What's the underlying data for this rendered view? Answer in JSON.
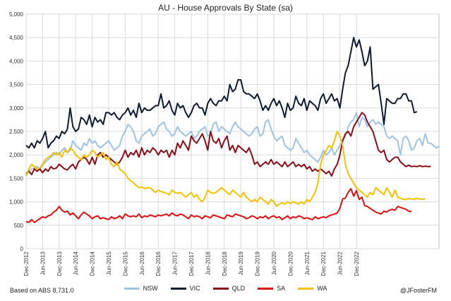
{
  "chart_data": {
    "type": "line",
    "title": "AU - House Approvals By State (sa)",
    "xlabel": "",
    "ylabel": "",
    "ylim": [
      0,
      5000
    ],
    "yticks": [
      0,
      500,
      1000,
      1500,
      2000,
      2500,
      3000,
      3500,
      4000,
      4500,
      5000
    ],
    "ytick_labels": [
      "0",
      "500",
      "1,000",
      "1,500",
      "2,000",
      "2,500",
      "3,000",
      "3,500",
      "4,000",
      "4,500",
      "5,000"
    ],
    "grid": true,
    "legend_position": "bottom",
    "x_start": "Dec-2012",
    "x_tick_labels": [
      "Dec-2012",
      "Jun-2013",
      "Dec-2013",
      "Jun-2014",
      "Dec-2014",
      "Jun-2015",
      "Dec-2015",
      "Jun-2016",
      "Dec-2016",
      "Jun-2017",
      "Dec-2017",
      "Jun-2018",
      "Dec-2018",
      "Jun-2019",
      "Dec-2019",
      "Jun-2020",
      "Dec-2020",
      "Jun-2021",
      "Dec-2021",
      "Jun-2022",
      "Dec-2022"
    ],
    "x_tick_step_months": 6,
    "series": [
      {
        "name": "NSW",
        "color": "#9dc3e6",
        "values": [
          1600,
          1650,
          1700,
          1720,
          1750,
          1700,
          1780,
          1850,
          1900,
          1950,
          2000,
          2050,
          2000,
          2100,
          2150,
          2050,
          2100,
          2300,
          2200,
          2150,
          2100,
          2250,
          2200,
          2350,
          2250,
          2300,
          2200,
          2150,
          2200,
          2250,
          2300,
          2200,
          2100,
          2150,
          2200,
          2400,
          2500,
          2650,
          2600,
          2500,
          2300,
          2250,
          2400,
          2450,
          2500,
          2550,
          2400,
          2450,
          2600,
          2650,
          2700,
          2550,
          2500,
          2400,
          2450,
          2600,
          2500,
          2450,
          2400,
          2450,
          2500,
          2350,
          2400,
          2500,
          2550,
          2600,
          2400,
          2450,
          2650,
          2700,
          2500,
          2600,
          2550,
          2500,
          2450,
          2600,
          2700,
          2600,
          2550,
          2500,
          2450,
          2400,
          2450,
          2550,
          2600,
          2400,
          2450,
          2700,
          2750,
          2550,
          2400,
          2300,
          2350,
          2400,
          2200,
          2150,
          2100,
          2150,
          2350,
          2250,
          2150,
          2050,
          2100,
          2000,
          1950,
          1900,
          1850,
          1950,
          2100,
          2000,
          2050,
          2150,
          2000,
          2100,
          2200,
          2300,
          2400,
          2600,
          2700,
          2750,
          2900,
          2600,
          2800,
          2750,
          2600,
          2700,
          2750,
          2650,
          2700,
          2650,
          2600,
          2400,
          2350,
          2400,
          2350,
          2300,
          2000,
          2350,
          2400,
          2300,
          2100,
          2150,
          2300,
          2350,
          2200,
          2450,
          2250,
          2250,
          2200,
          2150,
          2180
        ]
      },
      {
        "name": "VIC",
        "color": "#0d1b2e",
        "values": [
          2200,
          2150,
          2250,
          2150,
          2300,
          2250,
          2350,
          2500,
          2150,
          2250,
          2300,
          2400,
          2350,
          2500,
          2450,
          2550,
          3000,
          2600,
          2500,
          2550,
          2800,
          2750,
          2650,
          2850,
          2600,
          2800,
          2700,
          2750,
          2650,
          2900,
          2900,
          2850,
          2900,
          2800,
          2750,
          2850,
          2900,
          3000,
          2850,
          2950,
          2800,
          3100,
          2900,
          3000,
          2950,
          2950,
          3000,
          3050,
          3050,
          3300,
          3000,
          3050,
          3150,
          2950,
          2850,
          3100,
          3000,
          3050,
          2900,
          2800,
          2900,
          3050,
          3100,
          3000,
          3000,
          2850,
          3100,
          3200,
          3100,
          3050,
          3150,
          3150,
          3250,
          3150,
          3500,
          3350,
          3400,
          3600,
          3600,
          3350,
          3300,
          3300,
          3250,
          3200,
          3300,
          3150,
          2950,
          3050,
          2950,
          3100,
          3200,
          3050,
          3150,
          3000,
          2800,
          3100,
          2950,
          3000,
          3250,
          3100,
          3050,
          3200,
          2950,
          3150,
          3100,
          3050,
          2950,
          3200,
          3300,
          3100,
          3200,
          3300,
          3150,
          3200,
          3000,
          3400,
          3750,
          3900,
          4200,
          4500,
          4300,
          4450,
          4200,
          3900,
          4000,
          4300,
          3400,
          3450,
          3500,
          3100,
          2650,
          3200,
          3150,
          3100,
          3100,
          3200,
          3200,
          3300,
          3300,
          3150,
          3150,
          2900,
          2920
        ]
      },
      {
        "name": "QLD",
        "color": "#8b0d16",
        "values": [
          1600,
          1650,
          1580,
          1700,
          1650,
          1700,
          1620,
          1700,
          1650,
          1750,
          1700,
          1720,
          1800,
          1750,
          1700,
          1680,
          1750,
          1800,
          1700,
          1850,
          1900,
          1950,
          1900,
          1800,
          1950,
          1800,
          2000,
          2050,
          1950,
          2000,
          1950,
          1900,
          1850,
          1800,
          1850,
          1950,
          2100,
          1950,
          2050,
          2000,
          2100,
          1950,
          2150,
          2000,
          2100,
          2050,
          2150,
          2100,
          2000,
          2100,
          2050,
          2100,
          1950,
          2100,
          2000,
          2250,
          2150,
          2300,
          2200,
          2100,
          2400,
          2300,
          2250,
          2350,
          2450,
          2300,
          2100,
          2500,
          2300,
          2250,
          2350,
          2150,
          2300,
          2400,
          2100,
          2200,
          2050,
          2200,
          2150,
          2100,
          2050,
          2150,
          2000,
          1800,
          1850,
          1750,
          1800,
          1850,
          1800,
          1900,
          1800,
          1850,
          1800,
          1750,
          1850,
          1750,
          1800,
          1850,
          1750,
          1800,
          1750,
          1800,
          1700,
          1750,
          1650,
          1700,
          1650,
          1700,
          1650,
          1600,
          1650,
          1550,
          1700,
          1800,
          2000,
          2300,
          2450,
          2500,
          2400,
          2600,
          2700,
          2800,
          2900,
          2850,
          2700,
          2600,
          2500,
          2300,
          2100,
          2050,
          2100,
          1900,
          1850,
          1900,
          1950,
          1950,
          1850,
          1800,
          1750,
          1780,
          1750,
          1760,
          1750,
          1770,
          1750,
          1760,
          1750,
          1755
        ]
      },
      {
        "name": "SA",
        "color": "#e00f0f",
        "values": [
          580,
          560,
          620,
          560,
          600,
          640,
          680,
          660,
          700,
          720,
          780,
          820,
          900,
          820,
          780,
          800,
          720,
          760,
          700,
          640,
          720,
          780,
          740,
          700,
          640,
          680,
          700,
          640,
          660,
          640,
          620,
          680,
          640,
          660,
          700,
          640,
          740,
          700,
          680,
          700,
          680,
          740,
          660,
          700,
          680,
          720,
          700,
          680,
          720,
          700,
          720,
          740,
          700,
          760,
          720,
          700,
          740,
          720,
          680,
          640,
          720,
          680,
          700,
          680,
          640,
          700,
          680,
          660,
          720,
          700,
          680,
          660,
          640,
          720,
          700,
          680,
          740,
          720,
          700,
          680,
          640,
          660,
          700,
          680,
          640,
          680,
          660,
          700,
          640,
          680,
          700,
          660,
          680,
          620,
          660,
          700,
          640,
          680,
          660,
          700,
          680,
          640,
          660,
          640,
          620,
          680,
          640,
          660,
          680,
          660,
          700,
          720,
          740,
          760,
          860,
          1060,
          1080,
          1200,
          1280,
          1120,
          1240,
          1050,
          1100,
          920,
          900,
          860,
          820,
          780,
          760,
          740,
          800,
          780,
          820,
          840,
          820,
          900,
          880,
          860,
          840,
          800,
          790
        ]
      },
      {
        "name": "WA",
        "color": "#f5c200",
        "values": [
          1550,
          1700,
          1800,
          1750,
          1700,
          1720,
          1800,
          1900,
          1950,
          1980,
          2050,
          2000,
          2050,
          1950,
          2100,
          2050,
          2150,
          2100,
          2000,
          1950,
          1900,
          2000,
          1950,
          2000,
          2100,
          2050,
          1950,
          2000,
          2050,
          1900,
          1950,
          1800,
          1750,
          1850,
          1700,
          1650,
          1600,
          1500,
          1450,
          1400,
          1350,
          1300,
          1320,
          1280,
          1300,
          1300,
          1250,
          1200,
          1250,
          1220,
          1200,
          1180,
          1150,
          1250,
          1200,
          1180,
          1200,
          1150,
          1100,
          1150,
          1200,
          1100,
          1150,
          1050,
          1000,
          1100,
          1250,
          1200,
          1180,
          1200,
          1250,
          1300,
          1250,
          1200,
          1150,
          1250,
          1200,
          1150,
          1100,
          1200,
          1100,
          1050,
          1000,
          1050,
          1000,
          1100,
          1050,
          1000,
          950,
          1050,
          1000,
          900,
          950,
          980,
          950,
          1000,
          960,
          1000,
          980,
          950,
          1000,
          950,
          1050,
          1000,
          1100,
          1200,
          1400,
          1800,
          2000,
          2100,
          2200,
          2150,
          2300,
          2500,
          2400,
          2200,
          1800,
          1600,
          1500,
          1400,
          1300,
          1250,
          1200,
          1150,
          1100,
          1200,
          1150,
          1300,
          1250,
          1200,
          1150,
          1300,
          1200,
          1100,
          1250,
          1100,
          1080,
          1050,
          1050,
          1070,
          1060,
          1050,
          1080,
          1060,
          1050,
          1070
        ]
      }
    ]
  },
  "footer": {
    "source_note": "Based on ABS 8,731.0",
    "credit": "@JFosterFM"
  }
}
